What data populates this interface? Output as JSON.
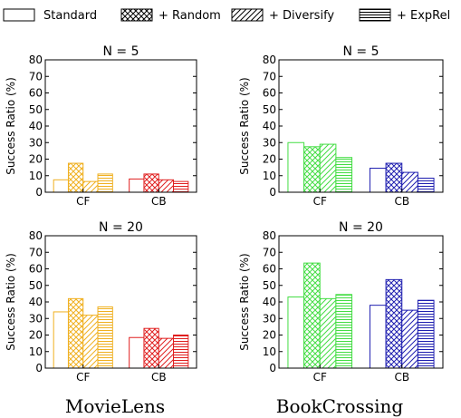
{
  "legend": {
    "position": "top",
    "entries": [
      {
        "label": "Standard",
        "hatch": "none"
      },
      {
        "label": "+ Random",
        "hatch": "cross"
      },
      {
        "label": "+ Diversify",
        "hatch": "diagonal"
      },
      {
        "label": "+ ExpRel",
        "hatch": "horizontal"
      }
    ]
  },
  "dataset_labels": [
    "MovieLens",
    "BookCrossing"
  ],
  "colors": {
    "movielens_cf": "#f0b020",
    "movielens_cb": "#e02020",
    "bookcrossing_cf": "#44dd44",
    "bookcrossing_cb": "#1f1fb0"
  },
  "chart_data": [
    {
      "type": "bar",
      "title": "N = 5",
      "ylabel": "Success Ratio (%)",
      "ylim": [
        0,
        80
      ],
      "yticks": [
        0,
        10,
        20,
        30,
        40,
        50,
        60,
        70,
        80
      ],
      "categories": [
        "CF",
        "CB"
      ],
      "series": [
        {
          "name": "Standard",
          "values": [
            7.5,
            8
          ]
        },
        {
          "name": "+ Random",
          "values": [
            17.5,
            11
          ]
        },
        {
          "name": "+ Diversify",
          "values": [
            6.5,
            7.5
          ]
        },
        {
          "name": "+ ExpRel",
          "values": [
            11,
            6.5
          ]
        }
      ]
    },
    {
      "type": "bar",
      "title": "N = 5",
      "ylabel": "Success Ratio (%)",
      "ylim": [
        0,
        80
      ],
      "yticks": [
        0,
        10,
        20,
        30,
        40,
        50,
        60,
        70,
        80
      ],
      "categories": [
        "CF",
        "CB"
      ],
      "series": [
        {
          "name": "Standard",
          "values": [
            30,
            14.5
          ]
        },
        {
          "name": "+ Random",
          "values": [
            27.5,
            17.5
          ]
        },
        {
          "name": "+ Diversify",
          "values": [
            29,
            12
          ]
        },
        {
          "name": "+ ExpRel",
          "values": [
            21,
            8.5
          ]
        }
      ]
    },
    {
      "type": "bar",
      "title": "N = 20",
      "ylabel": "Success Ratio (%)",
      "ylim": [
        0,
        80
      ],
      "yticks": [
        0,
        10,
        20,
        30,
        40,
        50,
        60,
        70,
        80
      ],
      "categories": [
        "CF",
        "CB"
      ],
      "series": [
        {
          "name": "Standard",
          "values": [
            34,
            18.5
          ]
        },
        {
          "name": "+ Random",
          "values": [
            42,
            24
          ]
        },
        {
          "name": "+ Diversify",
          "values": [
            32,
            18
          ]
        },
        {
          "name": "+ ExpRel",
          "values": [
            37,
            20
          ]
        }
      ]
    },
    {
      "type": "bar",
      "title": "N = 20",
      "ylabel": "Success Ratio (%)",
      "ylim": [
        0,
        80
      ],
      "yticks": [
        0,
        10,
        20,
        30,
        40,
        50,
        60,
        70,
        80
      ],
      "categories": [
        "CF",
        "CB"
      ],
      "series": [
        {
          "name": "Standard",
          "values": [
            43,
            38
          ]
        },
        {
          "name": "+ Random",
          "values": [
            63.5,
            53.5
          ]
        },
        {
          "name": "+ Diversify",
          "values": [
            42,
            35
          ]
        },
        {
          "name": "+ ExpRel",
          "values": [
            44.5,
            41
          ]
        }
      ]
    }
  ]
}
